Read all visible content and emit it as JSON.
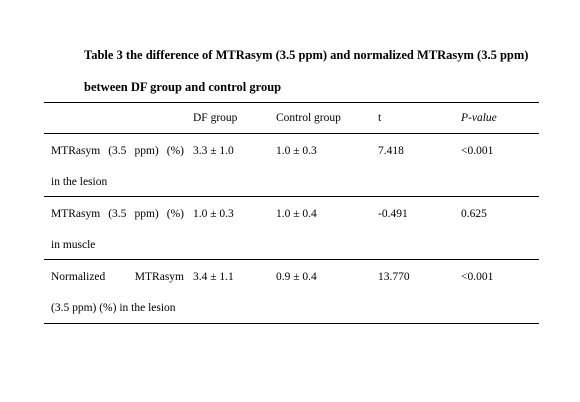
{
  "caption": {
    "line1": "Table 3 the difference of MTRasym (3.5 ppm) and normalized MTRasym (3.5 ppm)",
    "line2": "between DF group and control group"
  },
  "table": {
    "headers": [
      "",
      "DF group",
      "Control group",
      "t",
      "P-value"
    ],
    "rows": [
      {
        "label_line1_words": [
          "MTRasym",
          "(3.5",
          "ppm)",
          "(%)"
        ],
        "label_line2": "in the lesion",
        "df": "3.3 ± 1.0",
        "control": "1.0 ± 0.3",
        "t": "7.418",
        "p": "<0.001"
      },
      {
        "label_line1_words": [
          "MTRasym",
          "(3.5",
          "ppm)",
          "(%)"
        ],
        "label_line2": "in muscle",
        "df": "1.0 ± 0.3",
        "control": "1.0 ± 0.4",
        "t": "-0.491",
        "p": "0.625"
      },
      {
        "label_line1_words": [
          "Normalized",
          "MTRasym"
        ],
        "label_line2": "(3.5 ppm) (%) in the lesion",
        "df": "3.4 ± 1.1",
        "control": "0.9 ± 0.4",
        "t": "13.770",
        "p": "<0.001"
      }
    ]
  }
}
